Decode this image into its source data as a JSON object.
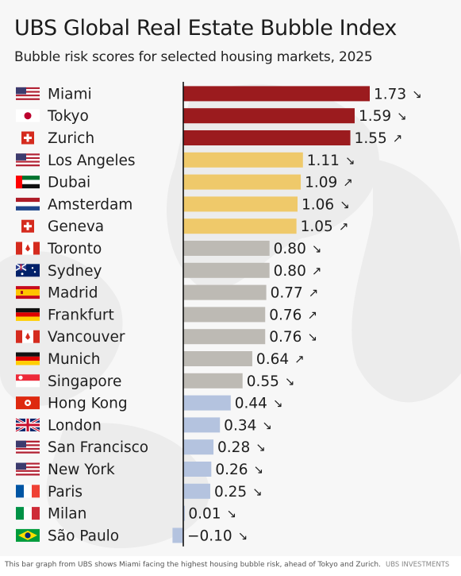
{
  "chart_data": {
    "type": "bar",
    "orientation": "horizontal",
    "title": "UBS Global Real Estate Bubble Index",
    "subtitle": "Bubble risk scores for selected housing markets, 2025",
    "categories": [
      "Miami",
      "Tokyo",
      "Zurich",
      "Los Angeles",
      "Dubai",
      "Amsterdam",
      "Geneva",
      "Toronto",
      "Sydney",
      "Madrid",
      "Frankfurt",
      "Vancouver",
      "Munich",
      "Singapore",
      "Hong Kong",
      "London",
      "San Francisco",
      "New York",
      "Paris",
      "Milan",
      "São Paulo"
    ],
    "values": [
      1.73,
      1.59,
      1.55,
      1.11,
      1.09,
      1.06,
      1.05,
      0.8,
      0.8,
      0.77,
      0.76,
      0.76,
      0.64,
      0.55,
      0.44,
      0.34,
      0.28,
      0.26,
      0.25,
      0.01,
      -0.1
    ],
    "value_labels": [
      "1.73",
      "1.59",
      "1.55",
      "1.11",
      "1.09",
      "1.06",
      "1.05",
      "0.80",
      "0.80",
      "0.77",
      "0.76",
      "0.76",
      "0.64",
      "0.55",
      "0.44",
      "0.34",
      "0.28",
      "0.26",
      "0.25",
      "0.01",
      "−0.10"
    ],
    "trend_arrows": [
      "↘",
      "↘",
      "↗",
      "↘",
      "↗",
      "↘",
      "↗",
      "↘",
      "↗",
      "↗",
      "↗",
      "↘",
      "↗",
      "↘",
      "↘",
      "↘",
      "↘",
      "↘",
      "↘",
      "↘",
      "↘"
    ],
    "flags": [
      "us",
      "jp",
      "ch",
      "us",
      "ae",
      "nl",
      "ch",
      "ca",
      "au",
      "es",
      "de",
      "ca",
      "de",
      "sg",
      "hk",
      "gb",
      "us",
      "us",
      "fr",
      "it",
      "br"
    ],
    "risk_tiers": [
      "high",
      "high",
      "high",
      "elevated",
      "elevated",
      "elevated",
      "elevated",
      "moderate",
      "moderate",
      "moderate",
      "moderate",
      "moderate",
      "moderate",
      "moderate",
      "low",
      "low",
      "low",
      "low",
      "low",
      "low",
      "low"
    ],
    "tier_colors": {
      "high": "#9b1b1e",
      "elevated": "#efc96a",
      "moderate": "#bdbab4",
      "low": "#b4c3df"
    },
    "xlim": [
      -0.2,
      1.73
    ],
    "grid": false,
    "legend": "none",
    "xlabel": "",
    "ylabel": ""
  },
  "caption": {
    "text": "This bar graph from UBS shows Miami facing the highest housing bubble risk, ahead of Tokyo and Zurich.",
    "credit": "UBS INVESTMENTS"
  }
}
